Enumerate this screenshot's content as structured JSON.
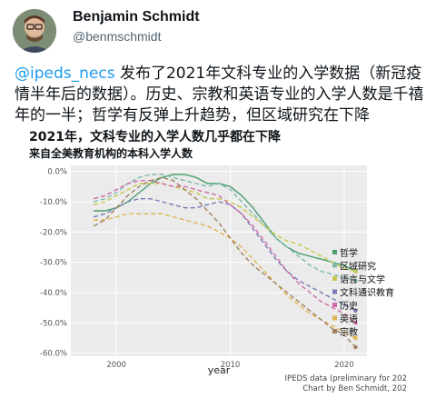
{
  "author": {
    "name": "Benjamin Schmidt",
    "handle": "@benmschmidt"
  },
  "tweet": {
    "mention": "@ipeds_necs",
    "text": " 发布了2021年文科专业的入学数据（新冠疫情半年后的数据）。历史、宗教和英语专业的入学人数是千禧年的一半；哲学有反弹上升趋势，但区域研究在下降"
  },
  "chart_data": {
    "type": "line",
    "title": "2021年，文科专业的入学人数几乎都在下降",
    "subtitle": "来自全美教育机构的本科入学人数",
    "xlabel": "year",
    "ylabel": "",
    "xlim": [
      1996,
      2022
    ],
    "ylim": [
      -61,
      2
    ],
    "x_ticks": [
      "2000",
      "2010",
      "2020"
    ],
    "y_ticks": [
      "0.0%",
      "-10.0%",
      "-20.0%",
      "-30.0%",
      "-40.0%",
      "-50.0%",
      "-60.0%"
    ],
    "y_tick_values": [
      0,
      -10,
      -20,
      -30,
      -40,
      -50,
      -60
    ],
    "grid": true,
    "x": [
      1998,
      1999,
      2000,
      2001,
      2002,
      2003,
      2004,
      2005,
      2006,
      2007,
      2008,
      2009,
      2010,
      2011,
      2012,
      2013,
      2014,
      2015,
      2016,
      2017,
      2018,
      2019,
      2020,
      2021
    ],
    "series": [
      {
        "name": "哲学",
        "color": "#4a9e6e",
        "dash": "",
        "values": [
          -13,
          -13,
          -12,
          -10,
          -7,
          -4,
          -2,
          -1,
          -1,
          -2,
          -4,
          -4,
          -5,
          -8,
          -12,
          -17,
          -22,
          -25,
          -27,
          -28,
          -29,
          -30,
          -31,
          -33
        ]
      },
      {
        "name": "区域研究",
        "color": "#7fb8b0",
        "dash": "5 3",
        "values": [
          -10,
          -9,
          -7,
          -4,
          -2,
          -1,
          -1,
          -2,
          -3,
          -4,
          -5,
          -4,
          -6,
          -10,
          -14,
          -18,
          -22,
          -25,
          -28,
          -31,
          -33,
          -34,
          -35,
          -36
        ]
      },
      {
        "name": "语言与文学",
        "color": "#c8c84a",
        "dash": "5 3",
        "values": [
          -11,
          -10,
          -8,
          -6,
          -4,
          -4,
          -4,
          -5,
          -6,
          -7,
          -9,
          -9,
          -10,
          -12,
          -15,
          -18,
          -21,
          -23,
          -24,
          -26,
          -28,
          -30,
          -32,
          -33
        ]
      },
      {
        "name": "文科通识教育",
        "color": "#7a7ab8",
        "dash": "5 3",
        "values": [
          -15,
          -14,
          -12,
          -10,
          -9,
          -9,
          -10,
          -11,
          -12,
          -12,
          -11,
          -10,
          -11,
          -14,
          -19,
          -24,
          -29,
          -33,
          -36,
          -38,
          -40,
          -42,
          -44,
          -46
        ]
      },
      {
        "name": "历史",
        "color": "#d06aa8",
        "dash": "5 3",
        "values": [
          -9,
          -8,
          -6,
          -4,
          -3,
          -3,
          -4,
          -5,
          -5,
          -6,
          -7,
          -8,
          -11,
          -14,
          -18,
          -23,
          -28,
          -33,
          -37,
          -40,
          -43,
          -45,
          -47,
          -50
        ]
      },
      {
        "name": "英语",
        "color": "#e0b450",
        "dash": "5 3",
        "values": [
          -16,
          -16,
          -15,
          -14,
          -14,
          -14,
          -14,
          -15,
          -16,
          -17,
          -18,
          -20,
          -22,
          -25,
          -29,
          -33,
          -37,
          -41,
          -44,
          -47,
          -49,
          -51,
          -53,
          -55
        ]
      },
      {
        "name": "宗教",
        "color": "#a08060",
        "dash": "5 3",
        "values": [
          -18,
          -16,
          -12,
          -8,
          -5,
          -3,
          -2,
          -3,
          -6,
          -9,
          -13,
          -17,
          -22,
          -27,
          -31,
          -34,
          -37,
          -40,
          -43,
          -46,
          -49,
          -52,
          -54,
          -58
        ]
      }
    ],
    "footnote": [
      "IPEDS data (preliminary for 202",
      "Chart by Ben Schmidt, 202"
    ]
  }
}
